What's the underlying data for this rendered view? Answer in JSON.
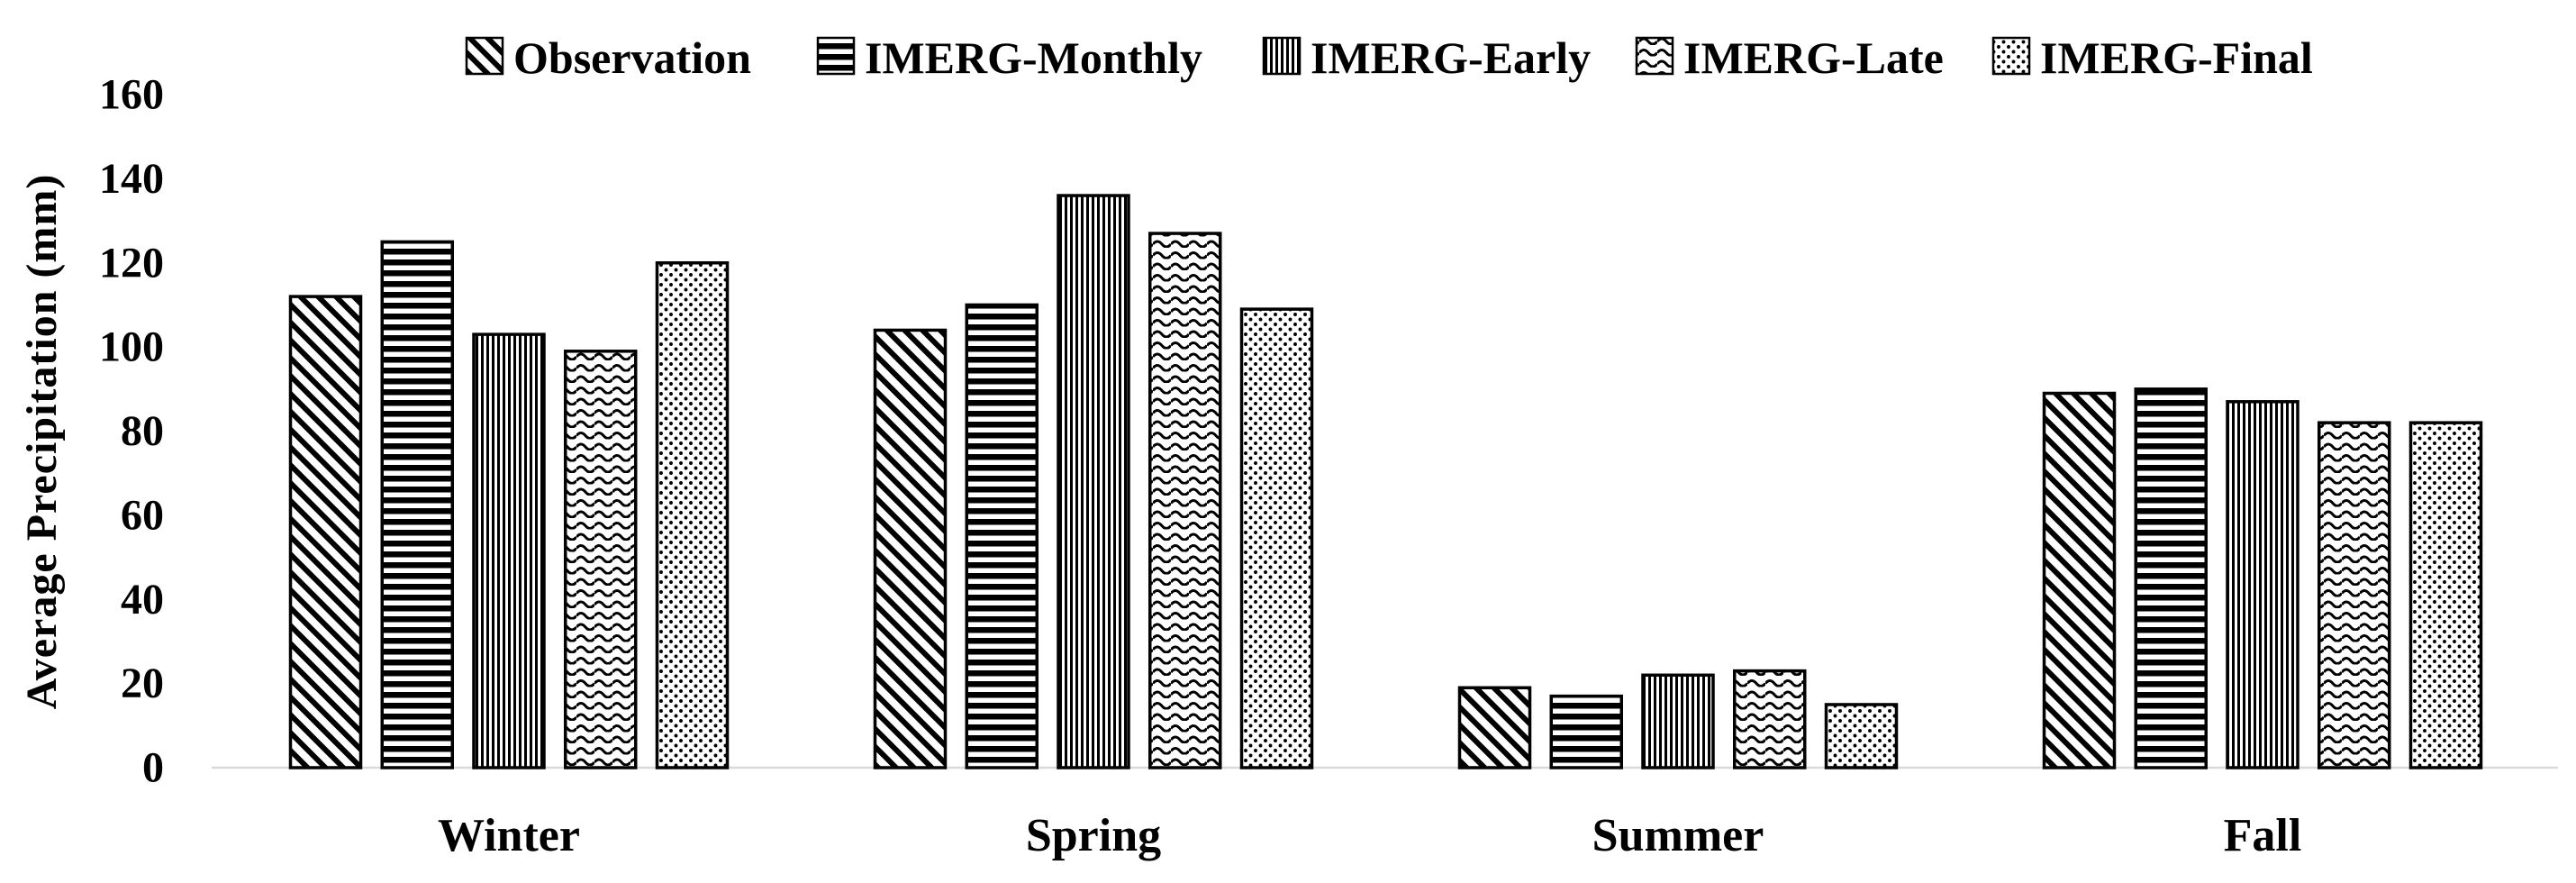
{
  "chart_data": {
    "type": "bar",
    "title": "",
    "xlabel": "",
    "ylabel": "Average Precipitation (mm)",
    "ylim": [
      0,
      160
    ],
    "ytick_step": 20,
    "yticks": [
      0,
      20,
      40,
      60,
      80,
      100,
      120,
      140,
      160
    ],
    "grid": false,
    "legend_position": "top",
    "categories": [
      "Winter",
      "Spring",
      "Summer",
      "Fall"
    ],
    "series": [
      {
        "name": "Observation",
        "pattern": "diagonal-stripes",
        "values": [
          112,
          104,
          19,
          89
        ]
      },
      {
        "name": "IMERG-Monthly",
        "pattern": "horizontal-stripes",
        "values": [
          125,
          110,
          17,
          90
        ]
      },
      {
        "name": "IMERG-Early",
        "pattern": "vertical-stripes",
        "values": [
          103,
          136,
          22,
          87
        ]
      },
      {
        "name": "IMERG-Late",
        "pattern": "zigzag-waves",
        "values": [
          99,
          127,
          23,
          82
        ]
      },
      {
        "name": "IMERG-Final",
        "pattern": "dots",
        "values": [
          120,
          109,
          15,
          82
        ]
      }
    ],
    "colors": {
      "bar_fill_foreground": "#000000",
      "bar_background": "#ffffff",
      "bar_outline": "#000000",
      "axis_line": "#d9d9d9",
      "text": "#000000",
      "background": "#ffffff"
    }
  }
}
